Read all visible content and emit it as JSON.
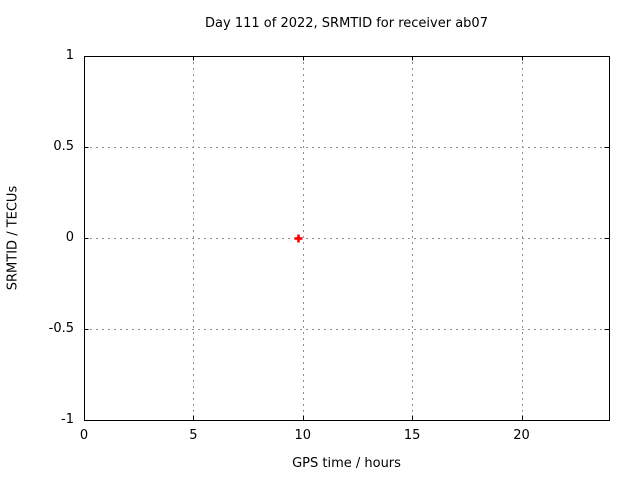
{
  "chart_data": {
    "type": "scatter",
    "title": "Day 111 of 2022, SRMTID for receiver ab07",
    "xlabel": "GPS time / hours",
    "ylabel": "SRMTID / TECUs",
    "xlim": [
      0,
      24
    ],
    "ylim": [
      -1,
      1
    ],
    "xticks": [
      0,
      5,
      10,
      15,
      20
    ],
    "yticks": [
      -1,
      -0.5,
      0,
      0.5,
      1
    ],
    "grid": true,
    "legend": "none",
    "series": [
      {
        "marker": "plus",
        "color": "#ff0000",
        "points": [
          [
            9.8,
            0
          ]
        ]
      }
    ],
    "colors": {
      "background": "#ffffff",
      "border": "#000000",
      "grid": "#909090",
      "text": "#000000"
    }
  }
}
